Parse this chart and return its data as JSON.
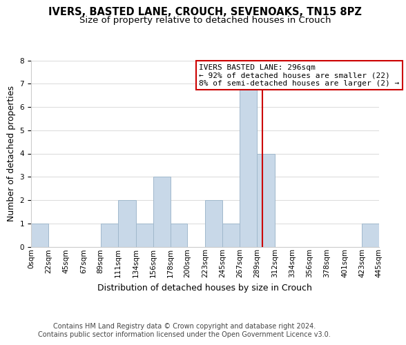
{
  "title": "IVERS, BASTED LANE, CROUCH, SEVENOAKS, TN15 8PZ",
  "subtitle": "Size of property relative to detached houses in Crouch",
  "xlabel": "Distribution of detached houses by size in Crouch",
  "ylabel": "Number of detached properties",
  "bin_labels": [
    "0sqm",
    "22sqm",
    "45sqm",
    "67sqm",
    "89sqm",
    "111sqm",
    "134sqm",
    "156sqm",
    "178sqm",
    "200sqm",
    "223sqm",
    "245sqm",
    "267sqm",
    "289sqm",
    "312sqm",
    "334sqm",
    "356sqm",
    "378sqm",
    "401sqm",
    "423sqm",
    "445sqm"
  ],
  "bin_edges": [
    0,
    22,
    45,
    67,
    89,
    111,
    134,
    156,
    178,
    200,
    223,
    245,
    267,
    289,
    312,
    334,
    356,
    378,
    401,
    423,
    445
  ],
  "bar_heights": [
    1,
    0,
    0,
    0,
    1,
    2,
    1,
    3,
    1,
    0,
    2,
    1,
    7,
    4,
    0,
    0,
    0,
    0,
    0,
    1,
    0
  ],
  "bar_color": "#c8d8e8",
  "bar_edgecolor": "#a0b8cc",
  "ref_line_x": 296,
  "ref_line_color": "#cc0000",
  "annotation_title": "IVERS BASTED LANE: 296sqm",
  "annotation_line1": "← 92% of detached houses are smaller (22)",
  "annotation_line2": "8% of semi-detached houses are larger (2) →",
  "annotation_box_color": "#ffffff",
  "annotation_box_edgecolor": "#cc0000",
  "ylim": [
    0,
    8
  ],
  "yticks": [
    0,
    1,
    2,
    3,
    4,
    5,
    6,
    7,
    8
  ],
  "grid_color": "#dddddd",
  "background_color": "#ffffff",
  "footer_line1": "Contains HM Land Registry data © Crown copyright and database right 2024.",
  "footer_line2": "Contains public sector information licensed under the Open Government Licence v3.0.",
  "title_fontsize": 10.5,
  "subtitle_fontsize": 9.5,
  "axis_label_fontsize": 9,
  "tick_fontsize": 7.5,
  "annotation_fontsize": 8,
  "footer_fontsize": 7
}
